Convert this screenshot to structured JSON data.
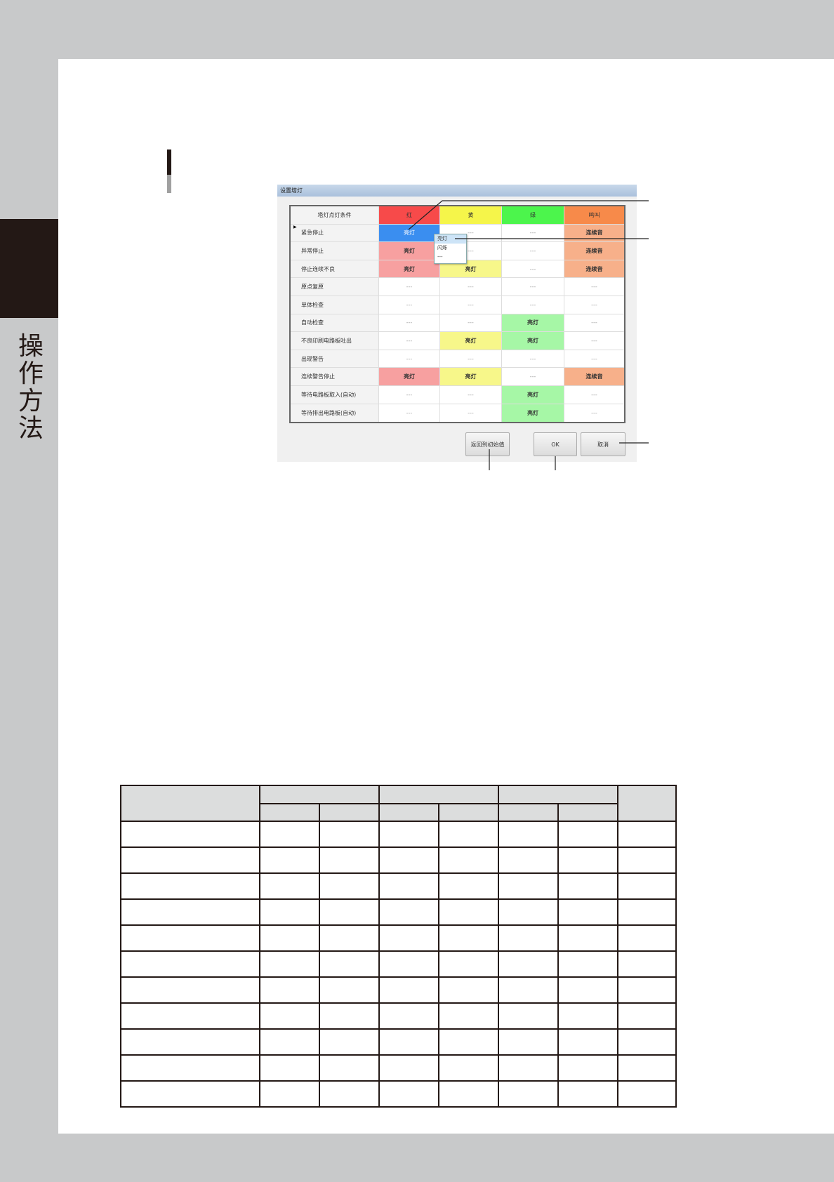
{
  "side_tab": {
    "label": "操作方法"
  },
  "dialog": {
    "title": "设置塔灯",
    "headers": [
      "塔灯点灯条件",
      "红",
      "黄",
      "绿",
      "鸣叫"
    ],
    "header_colors": [
      "#f2f2f2",
      "#f74a4a",
      "#f5f54a",
      "#4cf54c",
      "#f78a4a"
    ],
    "value_colors": {
      "红": "#f7a0a0",
      "黄": "#f7f78a",
      "绿": "#a6f7a6",
      "鸣叫": "#f7b08a",
      "selected": "#3a8ef0"
    },
    "rows": [
      {
        "name": "紧急停止",
        "values": [
          "亮灯",
          "---",
          "---",
          "连续音"
        ],
        "current": true
      },
      {
        "name": "异常停止",
        "values": [
          "亮灯",
          "---",
          "---",
          "连续音"
        ]
      },
      {
        "name": "停止连续不良",
        "values": [
          "亮灯",
          "亮灯",
          "---",
          "连续音"
        ]
      },
      {
        "name": "原点复原",
        "values": [
          "---",
          "---",
          "---",
          "---"
        ]
      },
      {
        "name": "单体检查",
        "values": [
          "---",
          "---",
          "---",
          "---"
        ]
      },
      {
        "name": "自动检查",
        "values": [
          "---",
          "---",
          "亮灯",
          "---"
        ]
      },
      {
        "name": "不良印刷电路板吐出",
        "values": [
          "---",
          "亮灯",
          "亮灯",
          "---"
        ]
      },
      {
        "name": "出现警告",
        "values": [
          "---",
          "---",
          "---",
          "---"
        ]
      },
      {
        "name": "连续警告停止",
        "values": [
          "亮灯",
          "亮灯",
          "---",
          "连续音"
        ]
      },
      {
        "name": "等待电路板取入(自动)",
        "values": [
          "---",
          "---",
          "亮灯",
          "---"
        ]
      },
      {
        "name": "等待排出电路板(自动)",
        "values": [
          "---",
          "---",
          "亮灯",
          "---"
        ]
      }
    ],
    "dropdown_options": [
      "亮灯",
      "闪烁",
      "---"
    ],
    "buttons": {
      "reset": "返回到初始值",
      "ok": "OK",
      "cancel": "取消"
    }
  }
}
